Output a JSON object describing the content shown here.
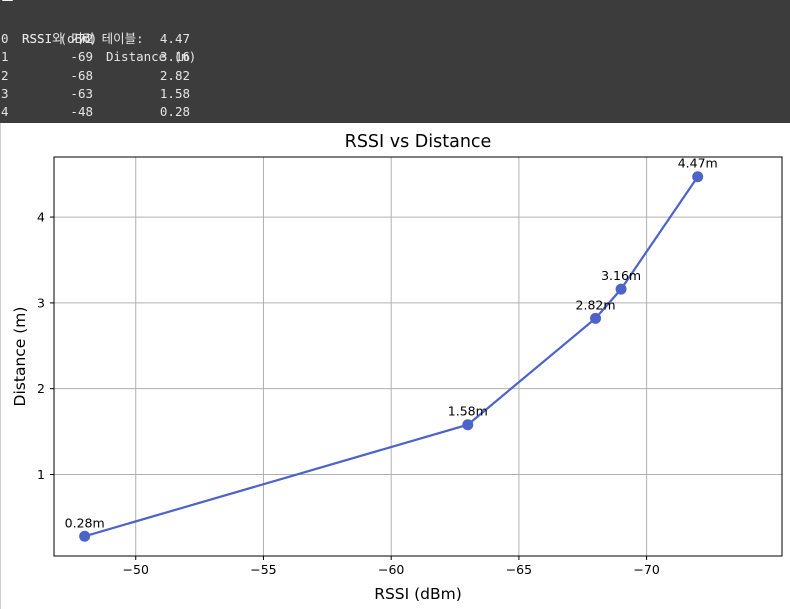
{
  "console": {
    "title": "RSSI와 거리 테이블:",
    "icon": "notepad-icon",
    "columns": [
      "RSSI (dBm)",
      "Distance (m)"
    ],
    "rows": [
      {
        "index": "0",
        "rssi": "-72",
        "distance": "4.47"
      },
      {
        "index": "1",
        "rssi": "-69",
        "distance": "3.16"
      },
      {
        "index": "2",
        "rssi": "-68",
        "distance": "2.82"
      },
      {
        "index": "3",
        "rssi": "-63",
        "distance": "1.58"
      },
      {
        "index": "4",
        "rssi": "-48",
        "distance": "0.28"
      }
    ]
  },
  "chart_data": {
    "type": "line",
    "title": "RSSI vs Distance",
    "xlabel": "RSSI (dBm)",
    "ylabel": "Distance (m)",
    "x": [
      -72,
      -69,
      -68,
      -63,
      -48
    ],
    "series": [
      {
        "values": [
          4.47,
          3.16,
          2.82,
          1.58,
          0.28
        ],
        "color": "#4c63c9"
      }
    ],
    "point_labels": [
      "4.47m",
      "3.16m",
      "2.82m",
      "1.58m",
      "0.28m"
    ],
    "xlim": [
      -46.8,
      -75.3
    ],
    "ylim": [
      0.05,
      4.7
    ],
    "x_inverted": true,
    "xticks": [
      -50,
      -55,
      -60,
      -65,
      -70
    ],
    "xtick_labels": [
      "−50",
      "−55",
      "−60",
      "−65",
      "−70"
    ],
    "yticks": [
      1,
      2,
      3,
      4
    ],
    "ytick_labels": [
      "1",
      "2",
      "3",
      "4"
    ],
    "grid": true
  }
}
